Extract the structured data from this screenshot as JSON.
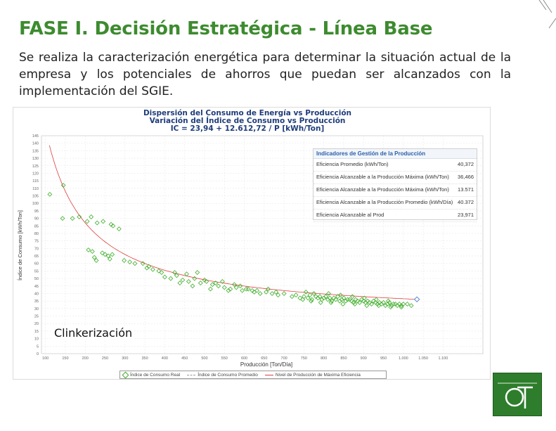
{
  "slide": {
    "title": "FASE I. Decisión Estratégica - Línea Base",
    "body": "Se realiza la caracterización energética para determinar la situación actual de la empresa y los potenciales de ahorros que puedan ser alcanzados con la implementación del SGIE.",
    "overlay_label": "Clinkerización"
  },
  "colors": {
    "accent": "#3d8b2f",
    "points": "#3fae2a",
    "curve": "#e03c3c",
    "chart_title": "#1f3d7a"
  },
  "chart_data": {
    "type": "scatter",
    "title": "Dispersión del Consumo de Energía vs Producción",
    "subtitle": "Variación del Índice de Consumo vs Producción",
    "equation": "IC = 23,94 + 12.612,72 / P [kWh/Ton]",
    "xlabel": "Producción [Ton/Día]",
    "ylabel": "Índice de Consumo [kWh/Ton]",
    "xlim": [
      90,
      1200
    ],
    "ylim": [
      0,
      145
    ],
    "xticks": [
      100,
      150,
      200,
      250,
      300,
      350,
      400,
      450,
      500,
      550,
      600,
      650,
      700,
      750,
      800,
      850,
      900,
      950,
      1000,
      1050,
      1100
    ],
    "xtick_labels": [
      "100",
      "150",
      "200",
      "250",
      "300",
      "350",
      "400",
      "450",
      "500",
      "550",
      "600",
      "650",
      "700",
      "750",
      "800",
      "850",
      "900",
      "950",
      "1.000",
      "1.050",
      "1.100"
    ],
    "yticks": [
      0,
      5,
      10,
      15,
      20,
      25,
      30,
      35,
      40,
      45,
      50,
      55,
      60,
      65,
      70,
      75,
      80,
      85,
      90,
      95,
      100,
      105,
      110,
      115,
      120,
      125,
      130,
      135,
      140,
      145
    ],
    "grid": true,
    "fit": {
      "a": 23.94,
      "b": 12612.72,
      "x_from": 110,
      "x_to": 1040
    },
    "points": [
      [
        111,
        106
      ],
      [
        145,
        112
      ],
      [
        143,
        90
      ],
      [
        168,
        90
      ],
      [
        185,
        91
      ],
      [
        205,
        88
      ],
      [
        215,
        91
      ],
      [
        230,
        87
      ],
      [
        245,
        88
      ],
      [
        265,
        86
      ],
      [
        270,
        85
      ],
      [
        285,
        83
      ],
      [
        208,
        69
      ],
      [
        218,
        68
      ],
      [
        223,
        64
      ],
      [
        228,
        62
      ],
      [
        243,
        67
      ],
      [
        250,
        66
      ],
      [
        258,
        65
      ],
      [
        262,
        63
      ],
      [
        268,
        66
      ],
      [
        298,
        62
      ],
      [
        312,
        61
      ],
      [
        325,
        60
      ],
      [
        355,
        57
      ],
      [
        370,
        56
      ],
      [
        385,
        55
      ],
      [
        400,
        51
      ],
      [
        415,
        50
      ],
      [
        430,
        52
      ],
      [
        445,
        49
      ],
      [
        460,
        48
      ],
      [
        475,
        50
      ],
      [
        490,
        47
      ],
      [
        505,
        48
      ],
      [
        520,
        46
      ],
      [
        535,
        45
      ],
      [
        550,
        44
      ],
      [
        565,
        43
      ],
      [
        580,
        44
      ],
      [
        595,
        42
      ],
      [
        610,
        43
      ],
      [
        625,
        41
      ],
      [
        640,
        40
      ],
      [
        655,
        41
      ],
      [
        670,
        40
      ],
      [
        685,
        39
      ],
      [
        700,
        40
      ],
      [
        345,
        60
      ],
      [
        360,
        58
      ],
      [
        392,
        54
      ],
      [
        425,
        54
      ],
      [
        438,
        47
      ],
      [
        455,
        53
      ],
      [
        470,
        45
      ],
      [
        482,
        54
      ],
      [
        500,
        49
      ],
      [
        515,
        43
      ],
      [
        528,
        47
      ],
      [
        545,
        48
      ],
      [
        560,
        42
      ],
      [
        575,
        46
      ],
      [
        590,
        45
      ],
      [
        605,
        43
      ],
      [
        620,
        42
      ],
      [
        632,
        42
      ],
      [
        660,
        43
      ],
      [
        680,
        41
      ],
      [
        720,
        38
      ],
      [
        730,
        39
      ],
      [
        740,
        37
      ],
      [
        750,
        38
      ],
      [
        760,
        37
      ],
      [
        765,
        39
      ],
      [
        770,
        36
      ],
      [
        780,
        38
      ],
      [
        785,
        37
      ],
      [
        790,
        38
      ],
      [
        795,
        36
      ],
      [
        800,
        37
      ],
      [
        805,
        38
      ],
      [
        810,
        36
      ],
      [
        815,
        37
      ],
      [
        820,
        35
      ],
      [
        825,
        37
      ],
      [
        830,
        36
      ],
      [
        835,
        38
      ],
      [
        840,
        35
      ],
      [
        845,
        36
      ],
      [
        850,
        37
      ],
      [
        855,
        35
      ],
      [
        860,
        36
      ],
      [
        865,
        36
      ],
      [
        870,
        35
      ],
      [
        875,
        34
      ],
      [
        880,
        36
      ],
      [
        885,
        35
      ],
      [
        890,
        34
      ],
      [
        895,
        36
      ],
      [
        900,
        35
      ],
      [
        905,
        34
      ],
      [
        910,
        35
      ],
      [
        915,
        34
      ],
      [
        920,
        33
      ],
      [
        925,
        35
      ],
      [
        930,
        34
      ],
      [
        935,
        33
      ],
      [
        940,
        34
      ],
      [
        945,
        33
      ],
      [
        950,
        34
      ],
      [
        955,
        32
      ],
      [
        960,
        33
      ],
      [
        965,
        34
      ],
      [
        970,
        32
      ],
      [
        975,
        33
      ],
      [
        980,
        33
      ],
      [
        985,
        32
      ],
      [
        990,
        33
      ],
      [
        995,
        32
      ],
      [
        1000,
        33
      ],
      [
        755,
        41
      ],
      [
        775,
        40
      ],
      [
        812,
        40
      ],
      [
        842,
        39
      ],
      [
        872,
        38
      ],
      [
        902,
        37
      ],
      [
        932,
        36
      ],
      [
        962,
        35
      ],
      [
        747,
        36
      ],
      [
        768,
        35
      ],
      [
        792,
        34
      ],
      [
        818,
        34
      ],
      [
        848,
        33
      ],
      [
        878,
        33
      ],
      [
        908,
        32
      ],
      [
        938,
        32
      ],
      [
        968,
        31
      ],
      [
        995,
        31
      ],
      [
        1010,
        33
      ],
      [
        1020,
        32
      ]
    ],
    "legend": {
      "placement": "bottom",
      "entries": [
        "Índice de Consumo Real",
        "Índice de Consumo Promedio",
        "Nivel de Producción de Máxima Eficiencia"
      ]
    },
    "indicators": {
      "header": "Indicadores de Gestión de la Producción",
      "rows": [
        {
          "label": "Eficiencia Promedio (kWh/Ton)",
          "value": "40,372"
        },
        {
          "label": "Eficiencia Alcanzable a la Producción Máxima (kWh/Ton)",
          "value": "36,466"
        },
        {
          "label": "Eficiencia Alcanzable a la Producción Máxima (kWh/Ton)",
          "value": "13.571"
        },
        {
          "label": "Eficiencia Alcanzable a la Producción Promedio (kWh/Día)",
          "value": "40.372"
        },
        {
          "label": "Eficiencia Alcanzable al Prod",
          "value": "23,971"
        }
      ]
    }
  }
}
